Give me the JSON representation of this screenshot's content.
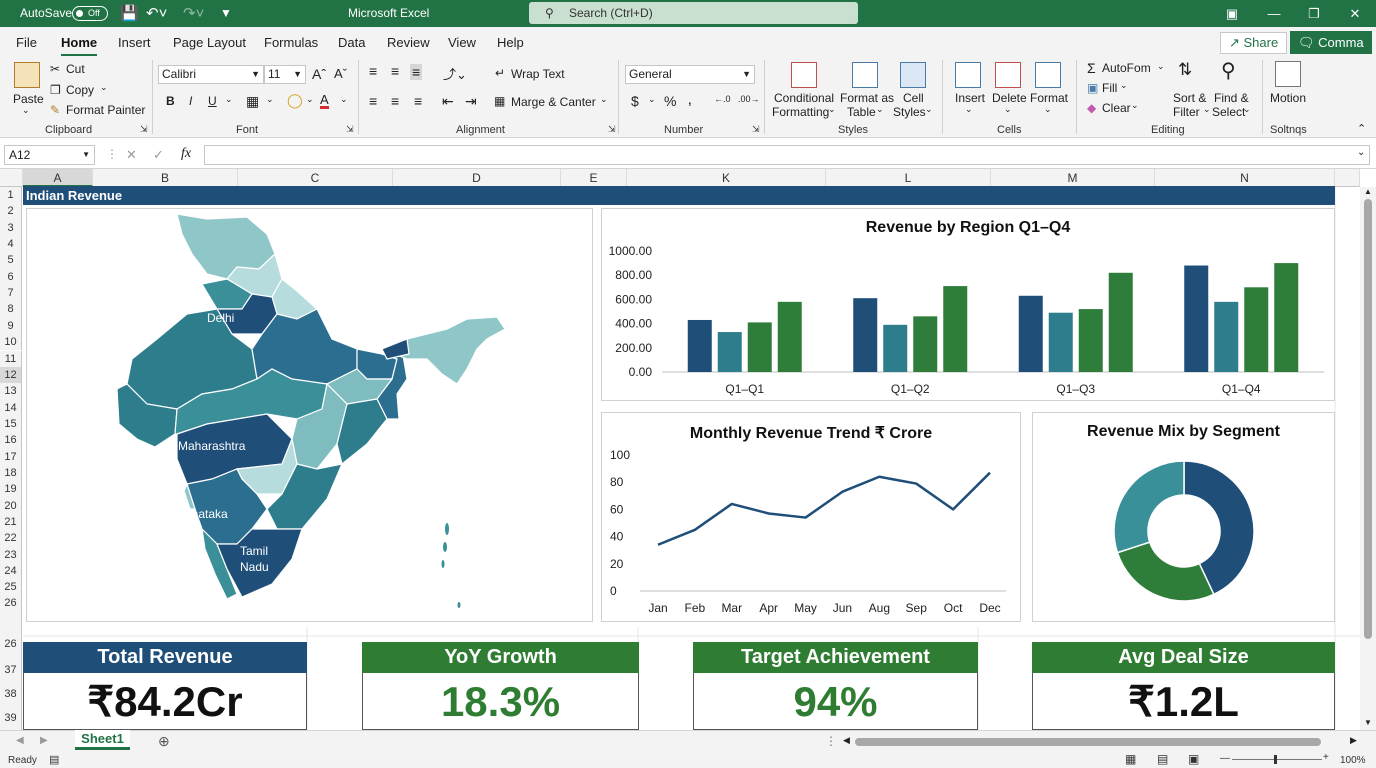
{
  "titlebar": {
    "autosave": "AutoSave",
    "toggle": "Off",
    "title": "Microsoft  Excel",
    "search": "Search (Ctrl+D)"
  },
  "menu": {
    "items": [
      "File",
      "Home",
      "Insert",
      "Page Layout",
      "Formulas",
      "Data",
      "Review",
      "View",
      "Help"
    ],
    "share": "Share",
    "comment": "Comma"
  },
  "ribbon": {
    "paste": "Paste",
    "cut": "Cut",
    "copy": "Copy",
    "format_painter": "Format Painter",
    "font_name": "Calibri",
    "font_size": "11",
    "wrap_text": "Wrap Text",
    "merge": "Marge & Canter",
    "number_format": "General",
    "conditional": [
      "Conditional",
      "Formatting"
    ],
    "format_table": [
      "Format as",
      "Table"
    ],
    "cell_styles": [
      "Cell",
      "Styles"
    ],
    "insert": "Insert",
    "delete": "Delete",
    "format": "Format",
    "autosum": "AutoFom",
    "fill": "Fill",
    "clear": "Clear",
    "sort": [
      "Sort &",
      "Filter"
    ],
    "find": [
      "Find &",
      "Select"
    ],
    "motion": "Motion",
    "groups": {
      "clipboard": "Clipboard",
      "font": "Font",
      "alignment": "Alignment",
      "number": "Number",
      "styles": "Styles",
      "cells": "Cells",
      "editing": "Editing",
      "solt": "Soltnqs"
    }
  },
  "formula": {
    "namebox": "A12",
    "fx": "fx"
  },
  "columns": [
    "A",
    "B",
    "C",
    "D",
    "E",
    "K",
    "L",
    "M",
    "N"
  ],
  "rows": [
    "1",
    "2",
    "3",
    "4",
    "5",
    "6",
    "7",
    "8",
    "9",
    "10",
    "11",
    "12",
    "13",
    "14",
    "15",
    "16",
    "17",
    "18",
    "19",
    "20",
    "21",
    "22",
    "23",
    "24",
    "25",
    "26",
    "26",
    "37",
    "38",
    "39"
  ],
  "banner": "Indian Revenue",
  "map": {
    "labels": {
      "delhi": "Delhi",
      "maharashtra": "Maharashtra",
      "karnataka": "Karnataka",
      "tamil": "Tamil",
      "nadu": "Nadu"
    }
  },
  "chart_data": [
    {
      "type": "bar",
      "title": "Revenue by Region Q1–Q4",
      "categories": [
        "Q1–Q1",
        "Q1–Q2",
        "Q1–Q3",
        "Q1–Q4"
      ],
      "series": [
        {
          "values": [
            430,
            610,
            630,
            880
          ]
        },
        {
          "values": [
            330,
            390,
            490,
            580
          ]
        },
        {
          "values": [
            410,
            460,
            520,
            700
          ]
        },
        {
          "values": [
            580,
            710,
            820,
            900
          ]
        }
      ],
      "ylim": [
        0,
        1000
      ],
      "yticks": [
        "0.00",
        "200.00",
        "400.00",
        "600.00",
        "800.00",
        "1000.00"
      ],
      "colors": [
        "#1f4e79",
        "#2e7d8c",
        "#2e7d3a",
        "#2e7d3a"
      ]
    },
    {
      "type": "line",
      "title": "Monthly Revenue Trend ₹ Crore",
      "categories": [
        "Jan",
        "Feb",
        "Mar",
        "Apr",
        "May",
        "Jun",
        "Aug",
        "Sep",
        "Oct",
        "Dec"
      ],
      "values": [
        34,
        45,
        64,
        57,
        54,
        73,
        84,
        79,
        60,
        87
      ],
      "ylim": [
        0,
        100
      ],
      "yticks": [
        "0",
        "20",
        "40",
        "60",
        "80",
        "100"
      ],
      "color": "#1f4e79"
    },
    {
      "type": "pie",
      "title": "Revenue Mix by Segment",
      "values": [
        43,
        27,
        30
      ],
      "colors": [
        "#1f4e79",
        "#2e7d3a",
        "#3a9099"
      ]
    }
  ],
  "kpis": [
    {
      "label": "Total Revenue",
      "value": "₹84.2Cr",
      "header_color": "#1f4e79",
      "value_color": "#111"
    },
    {
      "label": "YoY Growth",
      "value": "18.3%",
      "header_color": "#2e7d32",
      "value_color": "#2e7d32"
    },
    {
      "label": "Target Achievement",
      "value": "94%",
      "header_color": "#2e7d32",
      "value_color": "#2e7d32"
    },
    {
      "label": "Avg Deal Size",
      "value": "₹1.2L",
      "header_color": "#2e7d32",
      "value_color": "#111"
    }
  ],
  "sheet": {
    "tab": "Sheet1"
  },
  "status": {
    "ready": "Ready",
    "zoom": "100%"
  }
}
